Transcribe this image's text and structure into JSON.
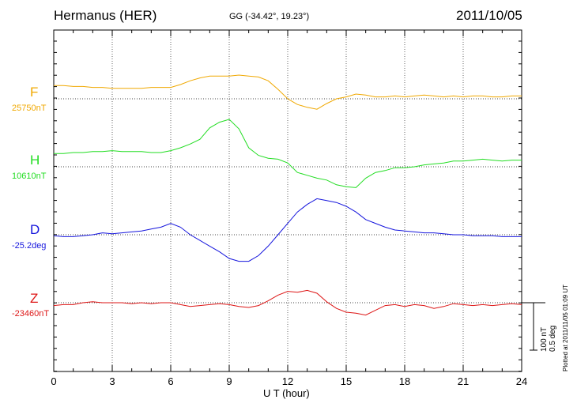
{
  "header": {
    "station": "Hermanus (HER)",
    "coords": "GG (-34.42°,  19.23°)",
    "date": "2011/10/05"
  },
  "footer": {
    "xlabel": "U T (hour)",
    "plotted": "Plotted at 2011/11/05 01:09 UT",
    "scale_nt": "100 nT",
    "scale_deg": "0.5 deg"
  },
  "chart_data": {
    "type": "line",
    "xlabel": "U T (hour)",
    "xlim": [
      0,
      24
    ],
    "xticks": [
      0,
      3,
      6,
      9,
      12,
      15,
      18,
      21,
      24
    ],
    "grid": true,
    "scale_bar": {
      "nT": 100,
      "deg": 0.5
    },
    "series": [
      {
        "name": "F",
        "baseline_label": "25750nT",
        "color": "#f0a800",
        "unit": "nT",
        "baseline": 25750,
        "x": [
          0,
          0.5,
          1,
          1.5,
          2,
          2.5,
          3,
          3.5,
          4,
          4.5,
          5,
          5.5,
          6,
          6.5,
          7,
          7.5,
          8,
          8.5,
          9,
          9.5,
          10,
          10.5,
          11,
          11.5,
          12,
          12.5,
          13,
          13.5,
          14,
          14.5,
          15,
          15.5,
          16,
          16.5,
          17,
          17.5,
          18,
          18.5,
          19,
          19.5,
          20,
          20.5,
          21,
          21.5,
          22,
          22.5,
          23,
          23.5,
          24
        ],
        "y": [
          28,
          28,
          26,
          26,
          24,
          24,
          22,
          22,
          22,
          22,
          24,
          24,
          24,
          30,
          38,
          44,
          48,
          48,
          48,
          50,
          48,
          46,
          38,
          20,
          0,
          -12,
          -18,
          -22,
          -10,
          0,
          4,
          10,
          8,
          4,
          4,
          6,
          4,
          6,
          8,
          6,
          4,
          6,
          4,
          6,
          6,
          4,
          4,
          6,
          6
        ]
      },
      {
        "name": "H",
        "baseline_label": "10610nT",
        "color": "#22dd22",
        "unit": "nT",
        "baseline": 10610,
        "x": [
          0,
          0.5,
          1,
          1.5,
          2,
          2.5,
          3,
          3.5,
          4,
          4.5,
          5,
          5.5,
          6,
          6.5,
          7,
          7.5,
          8,
          8.5,
          9,
          9.5,
          10,
          10.5,
          11,
          11.5,
          12,
          12.5,
          13,
          13.5,
          14,
          14.5,
          15,
          15.5,
          16,
          16.5,
          17,
          17.5,
          18,
          18.5,
          19,
          19.5,
          20,
          20.5,
          21,
          21.5,
          22,
          22.5,
          23,
          23.5,
          24
        ],
        "y": [
          28,
          28,
          30,
          30,
          32,
          32,
          34,
          32,
          32,
          32,
          30,
          30,
          34,
          40,
          48,
          58,
          82,
          94,
          100,
          80,
          40,
          24,
          18,
          16,
          8,
          -12,
          -18,
          -24,
          -28,
          -38,
          -42,
          -44,
          -24,
          -12,
          -8,
          -2,
          -2,
          0,
          4,
          6,
          8,
          12,
          12,
          14,
          16,
          14,
          12,
          14,
          14
        ]
      },
      {
        "name": "D",
        "baseline_label": "-25.2deg",
        "color": "#1515dd",
        "unit": "deg",
        "baseline": -25.2,
        "x": [
          0,
          0.5,
          1,
          1.5,
          2,
          2.5,
          3,
          3.5,
          4,
          4.5,
          5,
          5.5,
          6,
          6.5,
          7,
          7.5,
          8,
          8.5,
          9,
          9.5,
          10,
          10.5,
          11,
          11.5,
          12,
          12.5,
          13,
          13.5,
          14,
          14.5,
          15,
          15.5,
          16,
          16.5,
          17,
          17.5,
          18,
          18.5,
          19,
          19.5,
          20,
          20.5,
          21,
          21.5,
          22,
          22.5,
          23,
          23.5,
          24
        ],
        "y": [
          -0.01,
          -0.02,
          -0.02,
          -0.01,
          0.0,
          0.02,
          0.01,
          0.02,
          0.03,
          0.04,
          0.06,
          0.08,
          0.12,
          0.08,
          0.0,
          -0.06,
          -0.12,
          -0.18,
          -0.25,
          -0.28,
          -0.28,
          -0.22,
          -0.12,
          0.0,
          0.12,
          0.24,
          0.32,
          0.38,
          0.36,
          0.34,
          0.3,
          0.24,
          0.16,
          0.12,
          0.08,
          0.05,
          0.04,
          0.03,
          0.02,
          0.02,
          0.01,
          0.0,
          0.0,
          -0.01,
          -0.01,
          -0.01,
          -0.02,
          -0.02,
          -0.02
        ]
      },
      {
        "name": "Z",
        "baseline_label": "-23460nT",
        "color": "#dd1515",
        "unit": "nT",
        "baseline": -23460,
        "x": [
          0,
          0.5,
          1,
          1.5,
          2,
          2.5,
          3,
          3.5,
          4,
          4.5,
          5,
          5.5,
          6,
          6.5,
          7,
          7.5,
          8,
          8.5,
          9,
          9.5,
          10,
          10.5,
          11,
          11.5,
          12,
          12.5,
          13,
          13.5,
          14,
          14.5,
          15,
          15.5,
          16,
          16.5,
          17,
          17.5,
          18,
          18.5,
          19,
          19.5,
          20,
          20.5,
          21,
          21.5,
          22,
          22.5,
          23,
          23.5,
          24
        ],
        "y": [
          -6,
          -4,
          -4,
          0,
          2,
          0,
          0,
          0,
          -2,
          0,
          -2,
          0,
          0,
          -4,
          -8,
          -6,
          -4,
          -2,
          -4,
          -8,
          -10,
          -6,
          4,
          16,
          24,
          22,
          26,
          20,
          2,
          -12,
          -20,
          -22,
          -26,
          -16,
          -6,
          -4,
          -8,
          -4,
          -6,
          -12,
          -8,
          -2,
          -4,
          -6,
          -4,
          -6,
          -4,
          -2,
          -4
        ]
      }
    ]
  }
}
